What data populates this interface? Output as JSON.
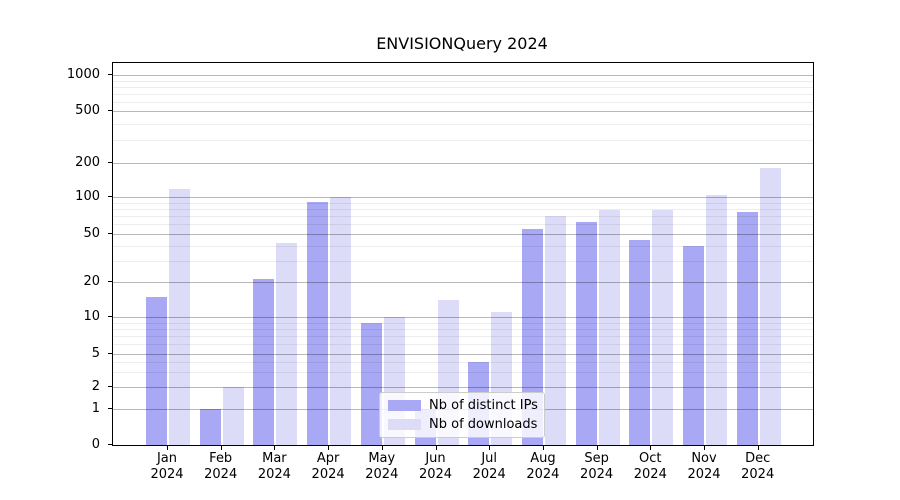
{
  "chart_data": {
    "type": "bar",
    "title": "ENVISIONQuery 2024",
    "months": [
      "Jan",
      "Feb",
      "Mar",
      "Apr",
      "May",
      "Jun",
      "Jul",
      "Aug",
      "Sep",
      "Oct",
      "Nov",
      "Dec"
    ],
    "year_label": "2024",
    "series": [
      {
        "name": "Nb of distinct IPs",
        "color": "#a8a8f4",
        "values": [
          15,
          1,
          21,
          92,
          9,
          1,
          4,
          55,
          63,
          45,
          40,
          76
        ]
      },
      {
        "name": "Nb of downloads",
        "color": "#dcdcf9",
        "values": [
          118,
          2,
          42,
          100,
          10,
          14,
          11,
          70,
          78,
          78,
          105,
          180
        ]
      }
    ],
    "ylabel": "",
    "xlabel": "",
    "y_scale": "log-like with compressed 0–2 region (symlog)",
    "y_ticks_major": [
      0,
      1,
      2,
      5,
      10,
      20,
      50,
      100,
      200,
      500,
      1000
    ],
    "y_ticks_minor": [
      3,
      4,
      6,
      7,
      8,
      9,
      30,
      40,
      60,
      70,
      80,
      90,
      300,
      400,
      600,
      700,
      800,
      900
    ],
    "ylim": [
      0,
      1400
    ],
    "grid": "major and minor horizontal gridlines drawn over bars",
    "legend_position": "lower center"
  }
}
